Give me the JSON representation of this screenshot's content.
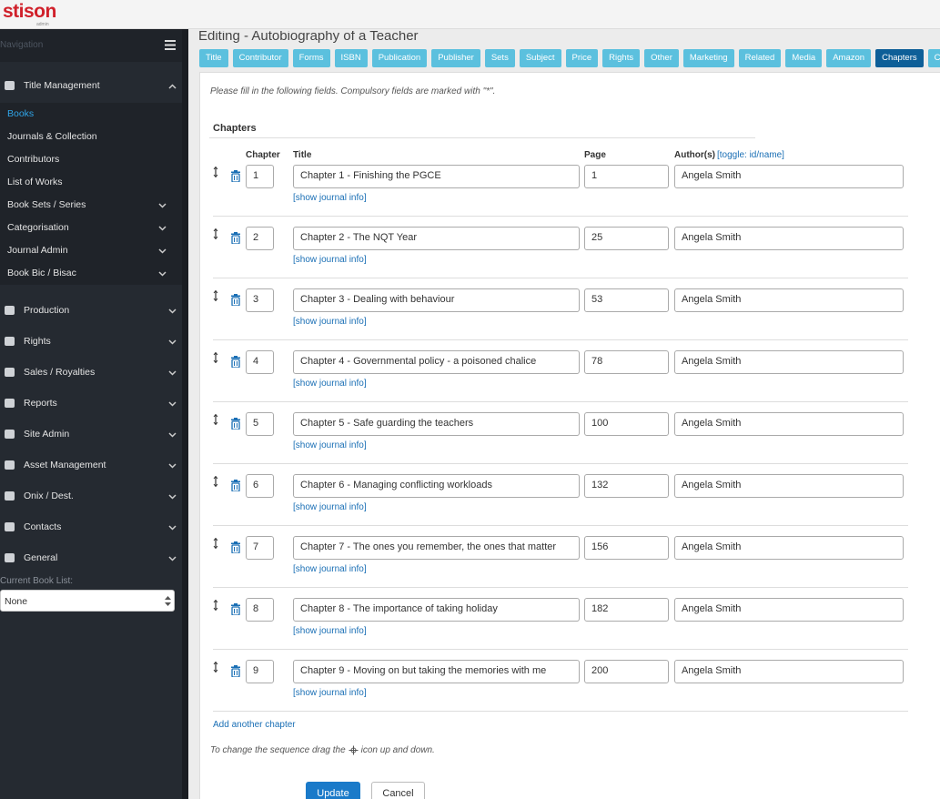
{
  "header": {
    "logo": "stison",
    "logo_sub": "admin"
  },
  "sidebar": {
    "nav_label": "Navigation",
    "sections": [
      {
        "label": "Title Management",
        "open": true,
        "active_item": 0,
        "items": [
          {
            "label": "Books",
            "expandable": false
          },
          {
            "label": "Journals & Collection",
            "expandable": false
          },
          {
            "label": "Contributors",
            "expandable": false
          },
          {
            "label": "List of Works",
            "expandable": false
          },
          {
            "label": "Book Sets / Series",
            "expandable": true
          },
          {
            "label": "Categorisation",
            "expandable": true
          },
          {
            "label": "Journal Admin",
            "expandable": true
          },
          {
            "label": "Book Bic / Bisac",
            "expandable": true
          }
        ]
      },
      {
        "label": "Production",
        "open": false,
        "items": []
      },
      {
        "label": "Rights",
        "open": false,
        "items": []
      },
      {
        "label": "Sales / Royalties",
        "open": false,
        "items": []
      },
      {
        "label": "Reports",
        "open": false,
        "items": []
      },
      {
        "label": "Site Admin",
        "open": false,
        "items": []
      },
      {
        "label": "Asset Management",
        "open": false,
        "items": []
      },
      {
        "label": "Onix / Dest.",
        "open": false,
        "items": []
      },
      {
        "label": "Contacts",
        "open": false,
        "items": []
      },
      {
        "label": "General",
        "open": false,
        "items": []
      }
    ],
    "book_list_label": "Current Book List:",
    "book_list_value": "None"
  },
  "main": {
    "title": "Editing - Autobiography of a Teacher",
    "tabs": [
      "Title",
      "Contributor",
      "Forms",
      "ISBN",
      "Publication",
      "Publisher",
      "Sets",
      "Subject",
      "Price",
      "Rights",
      "Other",
      "Marketing",
      "Related",
      "Media",
      "Amazon",
      "Chapters",
      "Ch"
    ],
    "active_tab": 15,
    "instructions": "Please fill in the following fields. Compulsory fields are marked with \"*\".",
    "section_title": "Chapters",
    "columns": {
      "chapter": "Chapter",
      "title": "Title",
      "page": "Page",
      "authors": "Author(s)",
      "toggle": "[toggle: id/name]"
    },
    "rows": [
      {
        "chapter": "1",
        "title": "Chapter 1 - Finishing the PGCE",
        "page": "1",
        "author": "Angela Smith",
        "journal_link": "[show journal info]"
      },
      {
        "chapter": "2",
        "title": "Chapter 2 - The NQT Year",
        "page": "25",
        "author": "Angela Smith",
        "journal_link": "[show journal info]"
      },
      {
        "chapter": "3",
        "title": "Chapter 3 - Dealing with behaviour",
        "page": "53",
        "author": "Angela Smith",
        "journal_link": "[show journal info]"
      },
      {
        "chapter": "4",
        "title": "Chapter 4 - Governmental policy - a poisoned chalice",
        "page": "78",
        "author": "Angela Smith",
        "journal_link": "[show journal info]"
      },
      {
        "chapter": "5",
        "title": "Chapter 5 - Safe guarding the teachers",
        "page": "100",
        "author": "Angela Smith",
        "journal_link": "[show journal info]"
      },
      {
        "chapter": "6",
        "title": "Chapter 6 - Managing conflicting workloads",
        "page": "132",
        "author": "Angela Smith",
        "journal_link": "[show journal info]"
      },
      {
        "chapter": "7",
        "title": "Chapter 7 - The ones you remember, the ones that matter",
        "page": "156",
        "author": "Angela Smith",
        "journal_link": "[show journal info]"
      },
      {
        "chapter": "8",
        "title": "Chapter 8 - The importance of taking holiday",
        "page": "182",
        "author": "Angela Smith",
        "journal_link": "[show journal info]"
      },
      {
        "chapter": "9",
        "title": "Chapter 9 - Moving on but taking the memories with me",
        "page": "200",
        "author": "Angela Smith",
        "journal_link": "[show journal info]"
      }
    ],
    "add_link": "Add another chapter",
    "drag_note_before": "To change the sequence drag the",
    "drag_note_after": "icon up and down.",
    "buttons": {
      "update": "Update",
      "cancel": "Cancel"
    }
  }
}
